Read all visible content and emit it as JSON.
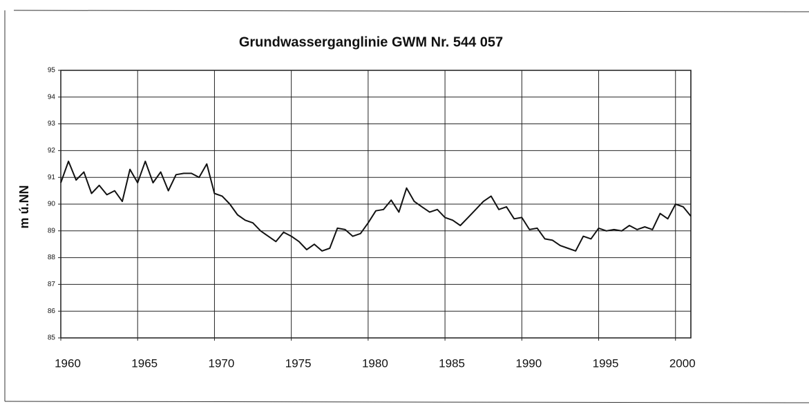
{
  "chart_data": {
    "type": "line",
    "title": "Grundwasserganglinie GWM Nr. 544 057",
    "y_label": "m ú.NN",
    "x": [
      1960,
      1960.5,
      1961,
      1961.5,
      1962,
      1962.5,
      1963,
      1963.5,
      1964,
      1964.5,
      1965,
      1965.5,
      1966,
      1966.5,
      1967,
      1967.5,
      1968,
      1968.5,
      1969,
      1969.5,
      1970,
      1970.5,
      1971,
      1971.5,
      1972,
      1972.5,
      1973,
      1973.5,
      1974,
      1974.5,
      1975,
      1975.5,
      1976,
      1976.5,
      1977,
      1977.5,
      1978,
      1978.5,
      1979,
      1979.5,
      1980,
      1980.5,
      1981,
      1981.5,
      1982,
      1982.5,
      1983,
      1983.5,
      1984,
      1984.5,
      1985,
      1985.5,
      1986,
      1986.5,
      1987,
      1987.5,
      1988,
      1988.5,
      1989,
      1989.5,
      1990,
      1990.5,
      1991,
      1991.5,
      1992,
      1992.5,
      1993,
      1993.5,
      1994,
      1994.5,
      1995,
      1995.5,
      1996,
      1996.5,
      1997,
      1997.5,
      1998,
      1998.5,
      1999,
      1999.5,
      2000,
      2000.5,
      2001
    ],
    "series": [
      {
        "name": "GWM 544 057",
        "color": "#111111",
        "values": [
          90.8,
          91.6,
          90.9,
          91.2,
          90.4,
          90.7,
          90.35,
          90.5,
          90.1,
          91.3,
          90.8,
          91.6,
          90.8,
          91.2,
          90.5,
          91.1,
          91.15,
          91.15,
          91.0,
          91.5,
          90.4,
          90.3,
          90.0,
          89.6,
          89.4,
          89.3,
          89.0,
          88.8,
          88.6,
          88.95,
          88.8,
          88.6,
          88.3,
          88.5,
          88.25,
          88.35,
          89.1,
          89.05,
          88.8,
          88.9,
          89.3,
          89.75,
          89.8,
          90.15,
          89.7,
          90.6,
          90.1,
          89.9,
          89.7,
          89.8,
          89.5,
          89.4,
          89.2,
          89.5,
          89.8,
          90.1,
          90.3,
          89.8,
          89.9,
          89.45,
          89.5,
          89.05,
          89.1,
          88.7,
          88.65,
          88.45,
          88.35,
          88.25,
          88.8,
          88.7,
          89.1,
          89.0,
          89.05,
          89.0,
          89.2,
          89.05,
          89.15,
          89.05,
          89.65,
          89.45,
          90.0,
          89.9,
          89.55
        ]
      }
    ],
    "xlim": [
      1960,
      2001
    ],
    "xticks": [
      1960,
      1965,
      1970,
      1975,
      1980,
      1985,
      1990,
      1995,
      2000
    ],
    "ylim": [
      85,
      95
    ],
    "yticks": [
      85,
      86,
      87,
      88,
      89,
      90,
      91,
      92,
      93,
      94,
      95
    ],
    "grid": true
  }
}
